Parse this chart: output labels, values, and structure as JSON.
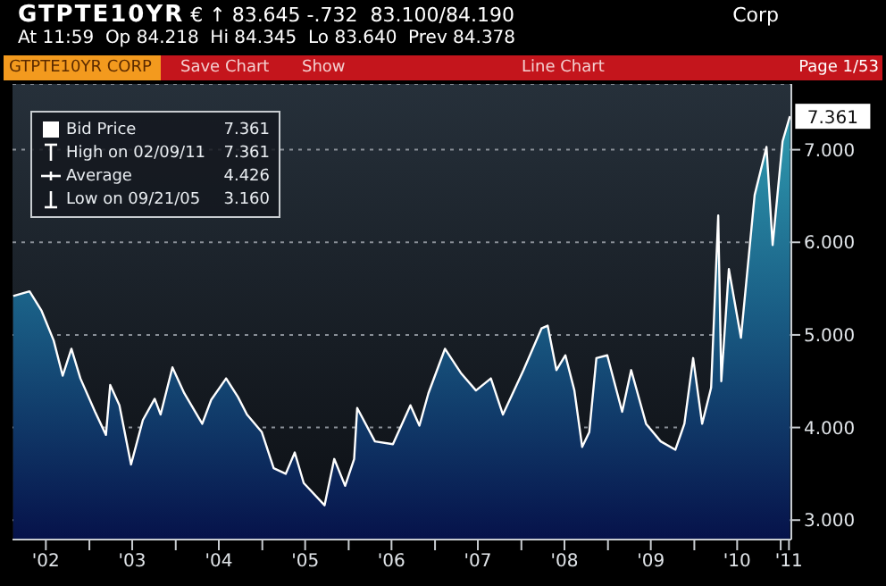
{
  "chart_data": {
    "type": "area",
    "title": "GTPTE10YR € ↑ 83.645 -.732  83.100/84.190",
    "subtitle": "At 11:59  Op 84.218  Hi 84.345  Lo 83.640  Prev 84.378",
    "annotations": [
      "Corp",
      "GTPTE10YR CORP",
      "Save Chart",
      "Show",
      "Line Chart",
      "Page 1/53",
      "7.361",
      "High on 02/09/11 7.361",
      "Average 4.426",
      "Low on 09/21/05 3.160",
      {
        "text": "7.361",
        "x": "2011-02-09",
        "y": 7.361
      }
    ],
    "x": [
      "2002-02-13",
      "2002-04-23",
      "2002-06-13",
      "2002-08-03",
      "2002-09-10",
      "2002-10-17",
      "2002-11-24",
      "2003-01-25",
      "2003-03-12",
      "2003-03-30",
      "2003-05-08",
      "2003-06-26",
      "2003-08-15",
      "2003-10-04",
      "2003-10-29",
      "2003-12-18",
      "2004-02-06",
      "2004-04-22",
      "2004-05-30",
      "2004-08-01",
      "2004-09-20",
      "2004-10-28",
      "2004-12-30",
      "2005-02-18",
      "2005-04-10",
      "2005-05-18",
      "2005-06-25",
      "2005-09-21",
      "2005-11-01",
      "2005-12-17",
      "2006-01-24",
      "2006-02-06",
      "2006-04-22",
      "2006-07-07",
      "2006-09-19",
      "2006-10-27",
      "2006-12-04",
      "2007-02-12",
      "2007-04-20",
      "2007-06-23",
      "2007-08-25",
      "2007-10-15",
      "2008-01-10",
      "2008-03-26",
      "2008-04-21",
      "2008-05-28",
      "2008-07-05",
      "2008-08-12",
      "2008-09-14",
      "2008-10-14",
      "2008-11-13",
      "2008-12-29",
      "2009-03-02",
      "2009-04-09",
      "2009-06-11",
      "2009-08-12",
      "2009-10-13",
      "2009-11-20",
      "2009-12-27",
      "2010-02-03",
      "2010-03-13",
      "2010-04-12",
      "2010-04-25",
      "2010-05-27",
      "2010-07-17",
      "2010-09-13",
      "2010-11-02",
      "2010-11-28",
      "2011-01-09",
      "2011-02-09"
    ],
    "series": [
      {
        "name": "Bid Price",
        "color": "#ffffff",
        "values": [
          5.42,
          5.47,
          5.26,
          4.94,
          4.56,
          4.85,
          4.53,
          4.17,
          3.92,
          4.46,
          4.24,
          3.6,
          4.08,
          4.31,
          4.14,
          4.65,
          4.37,
          4.04,
          4.3,
          4.53,
          4.33,
          4.14,
          3.95,
          3.56,
          3.5,
          3.73,
          3.4,
          3.16,
          3.66,
          3.37,
          3.66,
          4.21,
          3.85,
          3.82,
          4.24,
          4.02,
          4.37,
          4.85,
          4.59,
          4.4,
          4.53,
          4.14,
          4.62,
          5.07,
          5.1,
          4.62,
          4.78,
          4.4,
          3.79,
          3.95,
          4.75,
          4.78,
          4.17,
          4.62,
          4.04,
          3.85,
          3.76,
          4.04,
          4.75,
          4.04,
          4.43,
          6.29,
          4.5,
          5.71,
          4.97,
          6.51,
          7.03,
          5.97,
          7.09,
          7.361
        ]
      }
    ],
    "xlim": [
      "2002-02-10",
      "2011-02-15"
    ],
    "xticks": [
      {
        "value": "2002-07-01",
        "label": "'02"
      },
      {
        "value": "2003-01-01",
        "label": null
      },
      {
        "value": "2003-07-01",
        "label": "'03"
      },
      {
        "value": "2004-01-01",
        "label": null
      },
      {
        "value": "2004-07-01",
        "label": "'04"
      },
      {
        "value": "2005-01-01",
        "label": null
      },
      {
        "value": "2005-07-01",
        "label": "'05"
      },
      {
        "value": "2006-01-01",
        "label": null
      },
      {
        "value": "2006-07-01",
        "label": "'06"
      },
      {
        "value": "2007-01-01",
        "label": null
      },
      {
        "value": "2007-07-01",
        "label": "'07"
      },
      {
        "value": "2008-01-01",
        "label": null
      },
      {
        "value": "2008-07-01",
        "label": "'08"
      },
      {
        "value": "2009-01-01",
        "label": null
      },
      {
        "value": "2009-07-01",
        "label": "'09"
      },
      {
        "value": "2010-01-01",
        "label": null
      },
      {
        "value": "2010-07-01",
        "label": "'10"
      },
      {
        "value": "2011-01-01",
        "label": null
      },
      {
        "value": "2011-02-05",
        "label": "'11"
      }
    ],
    "ylim": [
      2.79,
      7.71
    ],
    "yticks": [
      {
        "value": 3,
        "label": "3.000"
      },
      {
        "value": 4,
        "label": "4.000"
      },
      {
        "value": 5,
        "label": "5.000"
      },
      {
        "value": 6,
        "label": "6.000"
      },
      {
        "value": 7,
        "label": "7.000"
      }
    ],
    "grid": "y",
    "legend": "top left"
  }
}
